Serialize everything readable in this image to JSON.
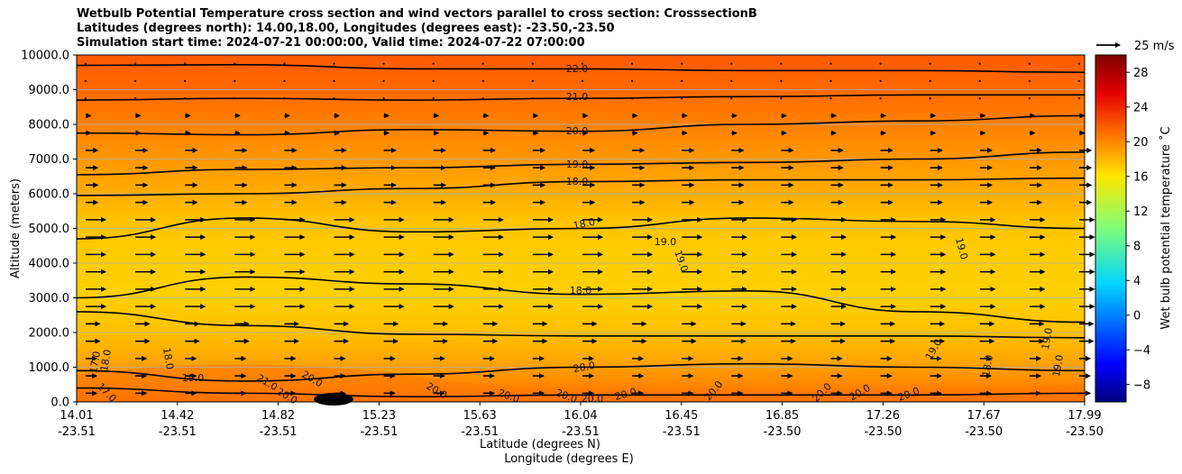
{
  "title": {
    "line1": "Wetbulb Potential Temperature cross section and wind vectors parallel to cross section: CrosssectionB",
    "line2": "Latitudes (degrees north): 14.00,18.00, Longitudes (degrees east): -23.50,-23.50",
    "line3": "Simulation start time: 2024-07-21 00:00:00, Valid time: 2024-07-22 07:00:00"
  },
  "chart_data": {
    "type": "heatmap",
    "ylabel": "Altitude (meters)",
    "xlabel_lat": "Latitude (degrees N)",
    "xlabel_lon": "Longitude (degrees E)",
    "ylim": [
      0,
      10000
    ],
    "y_ticks": [
      "0.0",
      "1000.0",
      "2000.0",
      "3000.0",
      "4000.0",
      "5000.0",
      "6000.0",
      "7000.0",
      "8000.0",
      "9000.0",
      "10000.0"
    ],
    "x_ticks": [
      {
        "lat": "14.01",
        "lon": "-23.51"
      },
      {
        "lat": "14.42",
        "lon": "-23.51"
      },
      {
        "lat": "14.82",
        "lon": "-23.51"
      },
      {
        "lat": "15.23",
        "lon": "-23.51"
      },
      {
        "lat": "15.63",
        "lon": "-23.51"
      },
      {
        "lat": "16.04",
        "lon": "-23.51"
      },
      {
        "lat": "16.45",
        "lon": "-23.51"
      },
      {
        "lat": "16.85",
        "lon": "-23.50"
      },
      {
        "lat": "17.26",
        "lon": "-23.50"
      },
      {
        "lat": "17.67",
        "lon": "-23.50"
      },
      {
        "lat": "17.99",
        "lon": "-23.50"
      }
    ],
    "grid": true,
    "colorbar": {
      "label": "Wet bulb potential temperature $^\\circ$C",
      "label_display": "Wet bulb potential temperature ˚C",
      "range": [
        -10,
        30
      ],
      "ticks": [
        "-8",
        "-4",
        "0",
        "4",
        "8",
        "12",
        "16",
        "20",
        "24",
        "28"
      ],
      "colormap": "jet"
    },
    "quiver_key": "25 m/s",
    "contours": [
      {
        "level": "22.0",
        "alt": [
          9700,
          9720,
          9600,
          9600,
          9550,
          9550,
          9500
        ]
      },
      {
        "level": "21.0",
        "alt": [
          8700,
          8750,
          8700,
          8750,
          8800,
          8850,
          8850
        ]
      },
      {
        "level": "20.0",
        "alt": [
          7750,
          7700,
          7850,
          7800,
          8000,
          8100,
          8250
        ]
      },
      {
        "level": "19.0",
        "alt": [
          6550,
          6700,
          6750,
          6850,
          6900,
          7000,
          7200
        ]
      },
      {
        "level": "18.0",
        "alt": [
          5950,
          6000,
          6150,
          6350,
          6400,
          6400,
          6450
        ]
      },
      {
        "level": "18.0",
        "alt": [
          4700,
          5300,
          4900,
          5000,
          5300,
          5200,
          5000
        ]
      },
      {
        "level": "18.0",
        "alt": [
          3000,
          3600,
          3400,
          3100,
          3200,
          2600,
          2300
        ]
      },
      {
        "level": "18.0",
        "alt": [
          2600,
          2200,
          1950,
          1900,
          1900,
          1900,
          1850
        ]
      },
      {
        "level": "19.0",
        "alt": [
          900,
          600,
          800,
          1000,
          1100,
          1000,
          900
        ]
      },
      {
        "level": "20.0",
        "alt": [
          400,
          250,
          150,
          200,
          200,
          200,
          250
        ]
      }
    ],
    "contour_labels": [
      "22.0",
      "21.0",
      "20.0",
      "19.0",
      "18.0",
      "18.0",
      "19.0",
      "19.0",
      "19.0",
      "18.0",
      "17.0",
      "18.0",
      "18.0",
      "19.0",
      "20.0",
      "21.0",
      "20.0",
      "20.0",
      "20.0",
      "20.0",
      "20.0",
      "20.0",
      "20.0",
      "20.0",
      "20.0",
      "20.0",
      "20.0",
      "19.0",
      "19.0",
      "18.0",
      "19.0",
      "17.0"
    ],
    "wind_field_note": "Mostly eastward vectors, strongest 2500-5500 m"
  }
}
